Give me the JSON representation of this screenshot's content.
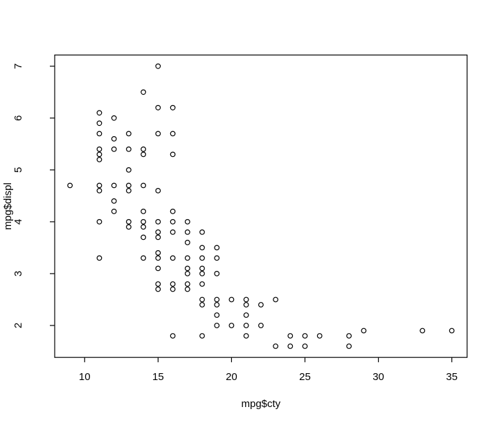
{
  "figure": {
    "background": "#ffffff",
    "foreground": "#000000"
  },
  "chart_data": {
    "type": "scatter",
    "xlabel": "mpg$cty",
    "ylabel": "mpg$displ",
    "xticks": [
      10,
      15,
      20,
      25,
      30,
      35
    ],
    "yticks": [
      2,
      3,
      4,
      5,
      6,
      7
    ],
    "xlim": [
      7.96,
      36.04
    ],
    "ylim": [
      1.384,
      7.216
    ],
    "grid": false,
    "marker": {
      "shape": "open-circle",
      "color": "#000000"
    },
    "points": [
      [
        9,
        4.7
      ],
      [
        11,
        6.1
      ],
      [
        11,
        5.9
      ],
      [
        11,
        5.7
      ],
      [
        11,
        5.4
      ],
      [
        11,
        5.3
      ],
      [
        11,
        5.2
      ],
      [
        11,
        4.7
      ],
      [
        11,
        4.6
      ],
      [
        11,
        4.0
      ],
      [
        11,
        3.3
      ],
      [
        12,
        6.0
      ],
      [
        12,
        5.6
      ],
      [
        12,
        5.4
      ],
      [
        12,
        4.7
      ],
      [
        12,
        4.4
      ],
      [
        12,
        4.2
      ],
      [
        13,
        5.7
      ],
      [
        13,
        5.4
      ],
      [
        13,
        5.0
      ],
      [
        13,
        4.7
      ],
      [
        13,
        4.6
      ],
      [
        13,
        4.0
      ],
      [
        13,
        3.9
      ],
      [
        14,
        6.5
      ],
      [
        14,
        5.4
      ],
      [
        14,
        5.3
      ],
      [
        14,
        4.7
      ],
      [
        14,
        4.2
      ],
      [
        14,
        4.0
      ],
      [
        14,
        3.9
      ],
      [
        14,
        3.7
      ],
      [
        14,
        3.3
      ],
      [
        15,
        7.0
      ],
      [
        15,
        6.2
      ],
      [
        15,
        5.7
      ],
      [
        15,
        4.6
      ],
      [
        15,
        4.0
      ],
      [
        15,
        3.8
      ],
      [
        15,
        3.7
      ],
      [
        15,
        3.4
      ],
      [
        15,
        3.3
      ],
      [
        15,
        3.1
      ],
      [
        15,
        2.8
      ],
      [
        15,
        2.7
      ],
      [
        16,
        6.2
      ],
      [
        16,
        5.7
      ],
      [
        16,
        5.3
      ],
      [
        16,
        4.2
      ],
      [
        16,
        4.0
      ],
      [
        16,
        3.8
      ],
      [
        16,
        3.3
      ],
      [
        16,
        2.8
      ],
      [
        16,
        2.7
      ],
      [
        16,
        1.8
      ],
      [
        17,
        4.0
      ],
      [
        17,
        3.8
      ],
      [
        17,
        3.6
      ],
      [
        17,
        3.3
      ],
      [
        17,
        3.1
      ],
      [
        17,
        3.0
      ],
      [
        17,
        2.8
      ],
      [
        17,
        2.7
      ],
      [
        18,
        3.8
      ],
      [
        18,
        3.5
      ],
      [
        18,
        3.3
      ],
      [
        18,
        3.1
      ],
      [
        18,
        3.0
      ],
      [
        18,
        2.8
      ],
      [
        18,
        2.5
      ],
      [
        18,
        2.4
      ],
      [
        18,
        1.8
      ],
      [
        19,
        3.5
      ],
      [
        19,
        3.3
      ],
      [
        19,
        3.0
      ],
      [
        19,
        2.5
      ],
      [
        19,
        2.4
      ],
      [
        19,
        2.2
      ],
      [
        19,
        2.0
      ],
      [
        20,
        2.5
      ],
      [
        20,
        2.0
      ],
      [
        21,
        2.5
      ],
      [
        21,
        2.4
      ],
      [
        21,
        2.2
      ],
      [
        21,
        2.0
      ],
      [
        21,
        1.8
      ],
      [
        22,
        2.4
      ],
      [
        22,
        2.0
      ],
      [
        23,
        2.5
      ],
      [
        23,
        1.6
      ],
      [
        24,
        1.8
      ],
      [
        24,
        1.6
      ],
      [
        25,
        1.8
      ],
      [
        25,
        1.6
      ],
      [
        26,
        1.8
      ],
      [
        28,
        1.8
      ],
      [
        28,
        1.6
      ],
      [
        29,
        1.9
      ],
      [
        33,
        1.9
      ],
      [
        35,
        1.9
      ]
    ]
  }
}
